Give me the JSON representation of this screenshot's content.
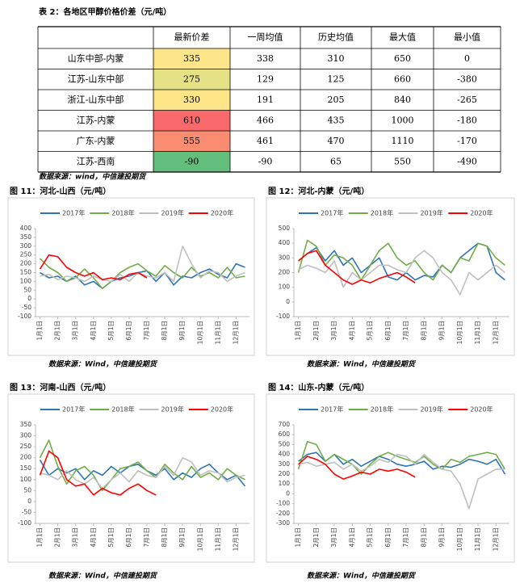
{
  "table_title": "表 2：各地区甲醇价格价差（元/吨）",
  "table": {
    "header": [
      "最新价差",
      "一周均值",
      "历史均值",
      "最大值",
      "最小值"
    ],
    "rows": [
      [
        "山东中部-内蒙",
        335,
        338,
        310,
        650,
        0
      ],
      [
        "江苏-山东中部",
        275,
        129,
        125,
        660,
        -380
      ],
      [
        "浙江-山东中部",
        330,
        191,
        205,
        840,
        -265
      ],
      [
        "江苏-内蒙",
        610,
        466,
        435,
        1000,
        -180
      ],
      [
        "广东-内蒙",
        555,
        461,
        470,
        1110,
        -170
      ],
      [
        "江苏-西南",
        -90,
        -90,
        65,
        550,
        -490
      ]
    ],
    "highlight_colors": [
      "#fde58a",
      "#e4e285",
      "#fee688",
      "#f8696b",
      "#fa8c72",
      "#63be7b"
    ]
  },
  "table_source": "数据来源：wind，中信建投期货",
  "chart_data": [
    {
      "type": "line",
      "title": "图 11：河北-山西（元/吨）",
      "source": "数据来源：Wind，中信建投期货",
      "categories": [
        "1月1日",
        null,
        "2月1日",
        null,
        "3月1日",
        null,
        "4月1日",
        null,
        "5月1日",
        null,
        "6月1日",
        null,
        "7月1日",
        null,
        "8月1日",
        null,
        "9月1日",
        null,
        "10月1日",
        null,
        "11月1日",
        null,
        "12月1日",
        null
      ],
      "ylim": [
        -100,
        400
      ],
      "yticks": [
        -100,
        -50,
        0,
        50,
        100,
        150,
        200,
        250,
        300,
        350,
        400
      ],
      "series": [
        {
          "name": "2017年",
          "color": "#2e75b6",
          "values": [
            150,
            120,
            130,
            100,
            130,
            80,
            100,
            60,
            100,
            120,
            130,
            150,
            160,
            100,
            150,
            80,
            130,
            120,
            150,
            170,
            140,
            120,
            200,
            180
          ]
        },
        {
          "name": "2018年",
          "color": "#70ad47",
          "values": [
            230,
            180,
            150,
            100,
            120,
            170,
            120,
            60,
            100,
            150,
            180,
            200,
            160,
            130,
            190,
            150,
            120,
            180,
            130,
            150,
            120,
            180,
            120,
            130
          ]
        },
        {
          "name": "2019年",
          "color": "#bfbfbf",
          "values": [
            130,
            140,
            110,
            130,
            120,
            100,
            130,
            110,
            100,
            140,
            100,
            150,
            130,
            120,
            150,
            100,
            300,
            200,
            120,
            160,
            150,
            100,
            130,
            150
          ]
        },
        {
          "name": "2020年",
          "color": "#ff0000",
          "values": [
            170,
            250,
            240,
            180,
            150,
            130,
            150,
            110,
            120,
            110,
            140,
            150,
            120,
            null,
            null,
            null,
            null,
            null,
            null,
            null,
            null,
            null,
            null,
            null
          ]
        }
      ]
    },
    {
      "type": "line",
      "title": "图 12：河北-内蒙（元/吨）",
      "source": "数据来源：Wind，中信建投期货",
      "categories": [
        "1月1日",
        null,
        "2月1日",
        null,
        "3月1日",
        null,
        "4月1日",
        null,
        "5月1日",
        null,
        "6月1日",
        null,
        "7月1日",
        null,
        "8月1日",
        null,
        "9月1日",
        null,
        "10月1日",
        null,
        "11月1日",
        null,
        "12月1日",
        null
      ],
      "ylim": [
        -100,
        500
      ],
      "yticks": [
        -100,
        0,
        100,
        200,
        300,
        400,
        500
      ],
      "series": [
        {
          "name": "2017年",
          "color": "#2e75b6",
          "values": [
            280,
            330,
            370,
            280,
            350,
            250,
            300,
            200,
            250,
            300,
            170,
            150,
            200,
            150,
            180,
            170,
            250,
            200,
            300,
            350,
            400,
            380,
            200,
            150
          ]
        },
        {
          "name": "2018年",
          "color": "#70ad47",
          "values": [
            200,
            420,
            380,
            250,
            320,
            300,
            250,
            150,
            250,
            350,
            400,
            300,
            250,
            280,
            200,
            150,
            250,
            200,
            300,
            280,
            400,
            380,
            300,
            250
          ]
        },
        {
          "name": "2019年",
          "color": "#bfbfbf",
          "values": [
            220,
            250,
            230,
            200,
            280,
            100,
            200,
            150,
            200,
            250,
            250,
            220,
            200,
            300,
            350,
            300,
            200,
            150,
            50,
            200,
            150,
            200,
            250,
            200
          ]
        },
        {
          "name": "2020年",
          "color": "#ff0000",
          "values": [
            280,
            330,
            350,
            250,
            200,
            150,
            120,
            150,
            130,
            160,
            180,
            200,
            170,
            130,
            null,
            null,
            null,
            null,
            null,
            null,
            null,
            null,
            null,
            null
          ]
        }
      ]
    },
    {
      "type": "line",
      "title": "图 13：河南-山西（元/吨）",
      "source": "数据来源：Wind，中信建投期货",
      "categories": [
        "1月1日",
        null,
        "2月1日",
        null,
        "3月1日",
        null,
        "4月1日",
        null,
        "5月1日",
        null,
        "6月1日",
        null,
        "7月1日",
        null,
        "8月1日",
        null,
        "9月1日",
        null,
        "10月1日",
        null,
        "11月1日",
        null,
        "12月1日",
        null
      ],
      "ylim": [
        -100,
        350
      ],
      "yticks": [
        -100,
        -50,
        0,
        50,
        100,
        150,
        200,
        250,
        300,
        350
      ],
      "series": [
        {
          "name": "2017年",
          "color": "#2e75b6",
          "values": [
            190,
            120,
            150,
            130,
            150,
            100,
            140,
            120,
            160,
            130,
            160,
            170,
            140,
            120,
            150,
            100,
            130,
            110,
            150,
            170,
            130,
            100,
            120,
            70
          ]
        },
        {
          "name": "2018年",
          "color": "#70ad47",
          "values": [
            200,
            280,
            160,
            80,
            140,
            160,
            120,
            50,
            100,
            150,
            160,
            180,
            140,
            110,
            170,
            130,
            100,
            160,
            110,
            130,
            100,
            150,
            120,
            100
          ]
        },
        {
          "name": "2019年",
          "color": "#bfbfbf",
          "values": [
            130,
            120,
            100,
            140,
            100,
            80,
            110,
            60,
            100,
            130,
            90,
            140,
            120,
            110,
            160,
            120,
            200,
            180,
            120,
            140,
            130,
            90,
            110,
            120
          ]
        },
        {
          "name": "2020年",
          "color": "#ff0000",
          "values": [
            120,
            230,
            200,
            100,
            70,
            80,
            30,
            60,
            40,
            30,
            60,
            80,
            50,
            30,
            null,
            null,
            null,
            null,
            null,
            null,
            null,
            null,
            null,
            null
          ]
        }
      ]
    },
    {
      "type": "line",
      "title": "图 14：山东-内蒙（元/吨）",
      "source": "数据来源：Wind，中信建投期货",
      "categories": [
        "1月1日",
        null,
        "2月1日",
        null,
        "3月1日",
        null,
        "4月1日",
        null,
        "5月1日",
        null,
        "6月1日",
        null,
        "7月1日",
        null,
        "8月1日",
        null,
        "9月1日",
        null,
        "10月1日",
        null,
        "11月1日",
        null,
        "12月1日",
        null
      ],
      "ylim": [
        -300,
        700
      ],
      "yticks": [
        -300,
        -200,
        -100,
        0,
        100,
        200,
        300,
        400,
        500,
        600,
        700
      ],
      "series": [
        {
          "name": "2017年",
          "color": "#2e75b6",
          "values": [
            330,
            400,
            420,
            330,
            400,
            300,
            350,
            280,
            330,
            380,
            350,
            300,
            280,
            300,
            330,
            250,
            280,
            270,
            300,
            350,
            330,
            300,
            350,
            200
          ]
        },
        {
          "name": "2018年",
          "color": "#70ad47",
          "values": [
            250,
            530,
            500,
            330,
            400,
            350,
            300,
            200,
            300,
            380,
            420,
            380,
            350,
            320,
            380,
            300,
            250,
            350,
            320,
            380,
            400,
            420,
            400,
            250
          ]
        },
        {
          "name": "2019年",
          "color": "#bfbfbf",
          "values": [
            300,
            320,
            280,
            300,
            320,
            250,
            300,
            230,
            280,
            350,
            320,
            400,
            380,
            300,
            400,
            320,
            250,
            230,
            100,
            -150,
            150,
            200,
            250,
            250
          ]
        },
        {
          "name": "2020年",
          "color": "#ff0000",
          "values": [
            300,
            380,
            350,
            300,
            200,
            150,
            180,
            220,
            200,
            250,
            230,
            250,
            220,
            170,
            null,
            null,
            null,
            null,
            null,
            null,
            null,
            null,
            null,
            null
          ]
        }
      ]
    }
  ]
}
